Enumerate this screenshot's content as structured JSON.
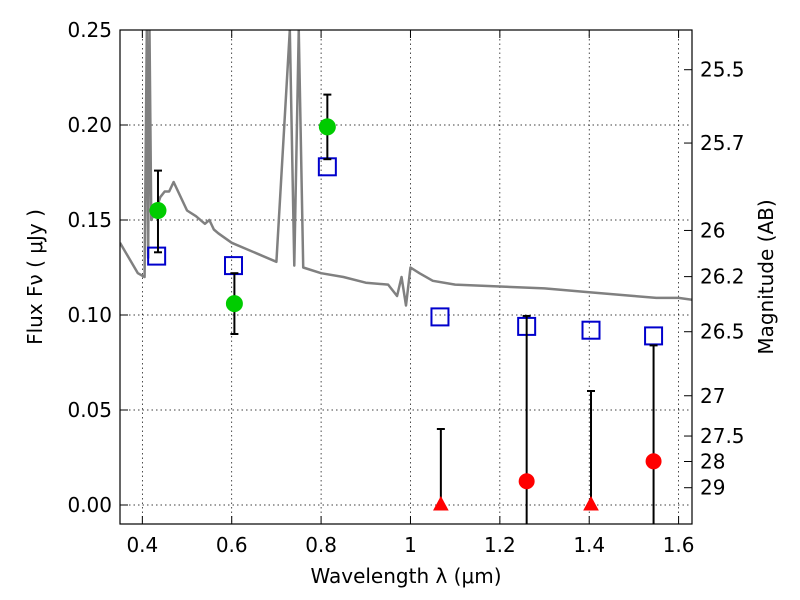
{
  "chart_data": {
    "type": "scatter",
    "xlabel": "Wavelength  λ (μm)",
    "ylabel": "Flux  Fν  ( μJy )",
    "ylabel_right": "Magnitude (AB)",
    "xlim": [
      0.35,
      1.63
    ],
    "ylim": [
      -0.01,
      0.25
    ],
    "grid": true,
    "x_ticks": [
      0.4,
      0.6,
      0.8,
      1.0,
      1.2,
      1.4,
      1.6
    ],
    "x_tick_labels": [
      "0.4",
      "0.6",
      "0.8",
      "1",
      "1.2",
      "1.4",
      "1.6"
    ],
    "y_ticks": [
      0.0,
      0.05,
      0.1,
      0.15,
      0.2,
      0.25
    ],
    "y_tick_labels": [
      "0.00",
      "0.05",
      "0.10",
      "0.15",
      "0.20",
      "0.25"
    ],
    "right_ticks": [
      {
        "label": "25.5",
        "flux": 0.2291
      },
      {
        "label": "25.7",
        "flux": 0.1905
      },
      {
        "label": "26",
        "flux": 0.1445
      },
      {
        "label": "26.2",
        "flux": 0.1202
      },
      {
        "label": "26.5",
        "flux": 0.0912
      },
      {
        "label": "27",
        "flux": 0.0575
      },
      {
        "label": "27.5",
        "flux": 0.0363
      },
      {
        "label": "28",
        "flux": 0.0229
      },
      {
        "label": "29",
        "flux": 0.0091
      }
    ],
    "series": [
      {
        "kind": "model-spectrum",
        "color": "#808080",
        "x": [
          0.35,
          0.37,
          0.39,
          0.405,
          0.41,
          0.413,
          0.416,
          0.42,
          0.43,
          0.44,
          0.45,
          0.46,
          0.47,
          0.48,
          0.49,
          0.5,
          0.52,
          0.54,
          0.55,
          0.56,
          0.57,
          0.6,
          0.63,
          0.66,
          0.7,
          0.73,
          0.74,
          0.75,
          0.76,
          0.8,
          0.85,
          0.9,
          0.95,
          0.97,
          0.98,
          0.99,
          1.0,
          1.02,
          1.05,
          1.1,
          1.2,
          1.3,
          1.4,
          1.5,
          1.55,
          1.6,
          1.63
        ],
        "y": [
          0.138,
          0.13,
          0.122,
          0.12,
          0.25,
          0.13,
          0.25,
          0.15,
          0.155,
          0.162,
          0.165,
          0.165,
          0.17,
          0.165,
          0.16,
          0.155,
          0.152,
          0.148,
          0.15,
          0.145,
          0.143,
          0.138,
          0.135,
          0.132,
          0.128,
          0.25,
          0.126,
          0.25,
          0.125,
          0.122,
          0.12,
          0.117,
          0.116,
          0.11,
          0.12,
          0.105,
          0.125,
          0.122,
          0.118,
          0.116,
          0.115,
          0.114,
          0.112,
          0.11,
          0.109,
          0.109,
          0.108
        ]
      },
      {
        "kind": "model-photometry",
        "marker": "open-square",
        "color": "#0000cc",
        "x": [
          0.432,
          0.604,
          0.814,
          1.066,
          1.26,
          1.404,
          1.544
        ],
        "y": [
          0.131,
          0.126,
          0.178,
          0.099,
          0.094,
          0.092,
          0.089
        ]
      },
      {
        "kind": "detections",
        "marker": "circle",
        "color": "#00cc00",
        "x": [
          0.435,
          0.606,
          0.814
        ],
        "y": [
          0.155,
          0.106,
          0.199
        ],
        "yerr_low": [
          0.022,
          0.016,
          0.017
        ],
        "yerr_high": [
          0.021,
          0.016,
          0.017
        ]
      },
      {
        "kind": "low-signal",
        "marker": "circle",
        "color": "#ff0000",
        "x": [
          1.26,
          1.544
        ],
        "y": [
          0.0125,
          0.023
        ],
        "yerr_high": [
          0.087,
          0.061
        ],
        "yerr_to_bottom": true
      },
      {
        "kind": "upper-limits",
        "marker": "triangle",
        "color": "#ff0000",
        "x": [
          1.068,
          1.404
        ],
        "y": [
          0.0,
          0.0
        ],
        "yerr_high": [
          0.04,
          0.06
        ]
      }
    ]
  }
}
